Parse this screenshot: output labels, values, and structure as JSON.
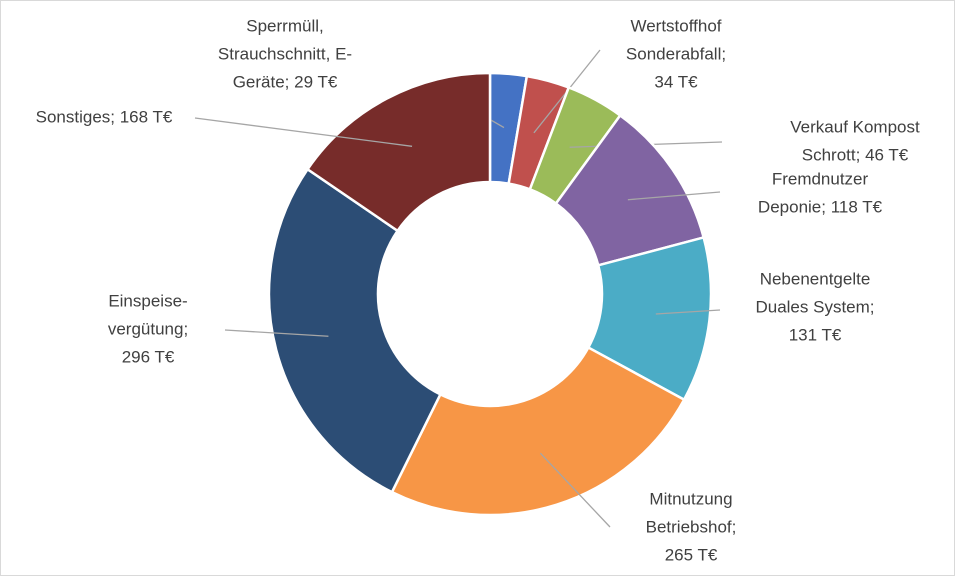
{
  "chart_data": {
    "type": "donut",
    "values": [
      29,
      34,
      46,
      118,
      131,
      265,
      296,
      168
    ],
    "value_labels": [
      [
        "Sperrmüll,",
        "Strauchschnitt, E-",
        "Geräte; 29 T€"
      ],
      [
        "Wertstoffhof",
        "Sonderabfall;",
        "34 T€"
      ],
      [
        "Verkauf Kompost",
        "Schrott; 46 T€"
      ],
      [
        "Fremdnutzer",
        "Deponie; 118 T€"
      ],
      [
        "Nebenentgelte",
        "Duales System;",
        "131 T€"
      ],
      [
        "Mitnutzung",
        "Betriebshof;",
        "265 T€"
      ],
      [
        "Einspeise-",
        "vergütung;",
        "296 T€"
      ],
      [
        "Sonstiges; 168 T€"
      ]
    ],
    "colors": [
      "#4472c4",
      "#c0504d",
      "#9bbb59",
      "#8064a2",
      "#4bacc6",
      "#f79646",
      "#2c4d75",
      "#772c2a"
    ]
  }
}
